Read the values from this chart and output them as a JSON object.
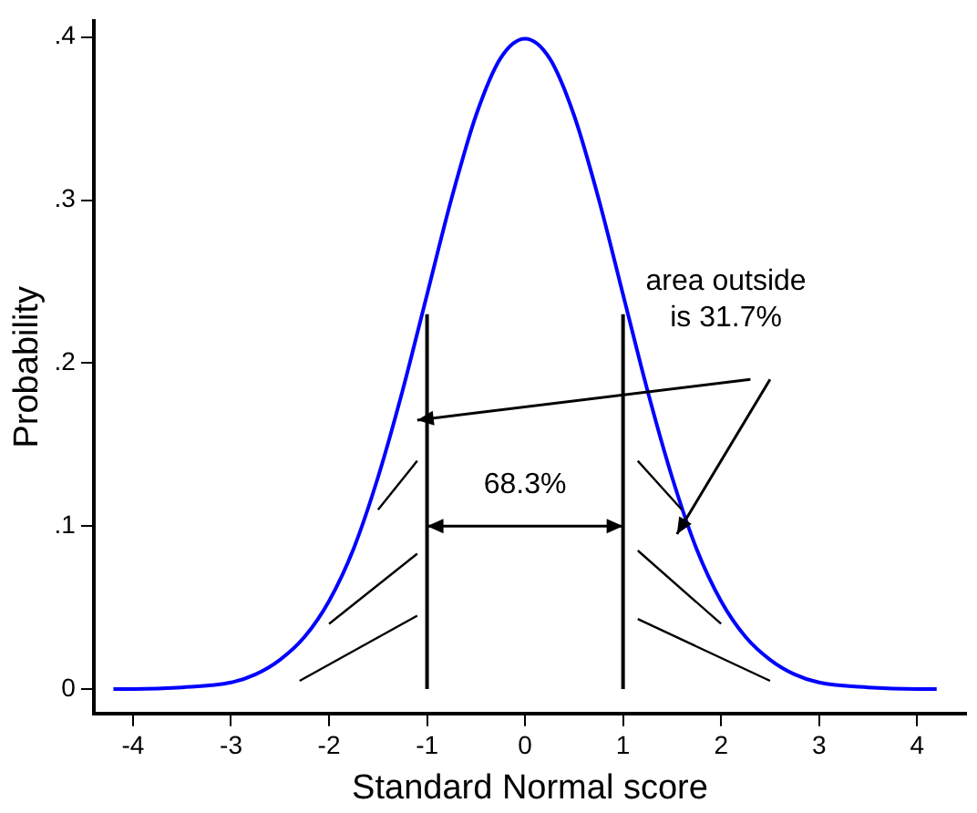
{
  "chart_data": {
    "type": "line",
    "xlabel": "Standard Normal score",
    "ylabel": "Probability",
    "x": [
      -4.2,
      -4,
      -3.5,
      -3,
      -2.75,
      -2.5,
      -2.25,
      -2,
      -1.75,
      -1.5,
      -1.25,
      -1,
      -0.75,
      -0.5,
      -0.25,
      0,
      0.25,
      0.5,
      0.75,
      1,
      1.25,
      1.5,
      1.75,
      2,
      2.25,
      2.5,
      2.75,
      3,
      3.5,
      4,
      4.2
    ],
    "series": [
      {
        "color": "#0000ff",
        "values": [
          0,
          0,
          0.001,
          0.004,
          0.009,
          0.018,
          0.032,
          0.054,
          0.086,
          0.13,
          0.183,
          0.242,
          0.301,
          0.352,
          0.387,
          0.399,
          0.387,
          0.352,
          0.301,
          0.242,
          0.183,
          0.13,
          0.086,
          0.054,
          0.032,
          0.018,
          0.009,
          0.004,
          0.001,
          0,
          0
        ]
      }
    ],
    "xlim": [
      -4.4,
      4.5
    ],
    "xticks": [
      -4,
      -3,
      -2,
      -1,
      0,
      1,
      2,
      3,
      4
    ],
    "ylim": [
      -0.015,
      0.41
    ],
    "yticks": [
      {
        "value": 0,
        "label": "0"
      },
      {
        "value": 0.1,
        "label": ".1"
      },
      {
        "value": 0.2,
        "label": ".2"
      },
      {
        "value": 0.3,
        "label": ".3"
      },
      {
        "value": 0.4,
        "label": ".4"
      }
    ],
    "ref_lines": [
      {
        "axis": "x",
        "value": -1,
        "color": "#000000"
      },
      {
        "axis": "x",
        "value": 1,
        "color": "#000000"
      }
    ],
    "annotations": [
      "68.3%",
      "area outside\nis 31.7%"
    ],
    "grid": false,
    "legend": false,
    "marker": "none",
    "line_style": "solid"
  }
}
